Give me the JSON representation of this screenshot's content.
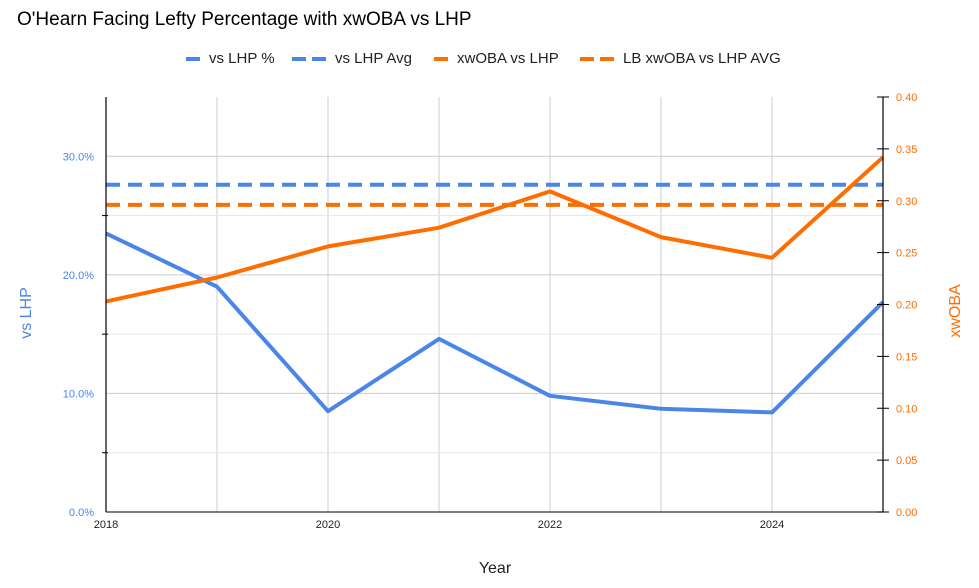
{
  "chart_data": {
    "type": "line",
    "title": "O'Hearn Facing Lefty Percentage with xwOBA vs LHP",
    "xlabel": "Year",
    "ylabel_left": "vs LHP",
    "ylabel_right": "xwOBA",
    "x": [
      2018,
      2019,
      2020,
      2021,
      2022,
      2023,
      2024,
      2025
    ],
    "x_ticks": [
      "2018",
      "2020",
      "2022",
      "2024"
    ],
    "x_range": [
      2018,
      2025
    ],
    "ylim_left": [
      0,
      0.35
    ],
    "ylim_right": [
      0,
      0.4
    ],
    "y_ticks_left": [
      "0.0%",
      "10.0%",
      "20.0%",
      "30.0%"
    ],
    "y_ticks_left_values": [
      0,
      0.1,
      0.2,
      0.3
    ],
    "y_minor_ticks_left_values": [
      0.05,
      0.15,
      0.25
    ],
    "y_ticks_right": [
      "0.00",
      "0.05",
      "0.10",
      "0.15",
      "0.20",
      "0.25",
      "0.30",
      "0.35",
      "0.40"
    ],
    "y_ticks_right_values": [
      0,
      0.05,
      0.1,
      0.15,
      0.2,
      0.25,
      0.3,
      0.35,
      0.4
    ],
    "grid": true,
    "legend_position": "top",
    "series": [
      {
        "name": "vs LHP %",
        "axis": "left",
        "style": "solid",
        "color": "#4a86e8",
        "values": [
          0.235,
          0.19,
          0.085,
          0.146,
          0.098,
          0.087,
          0.084,
          0.177
        ]
      },
      {
        "name": "vs LHP Avg",
        "axis": "left",
        "style": "dashed",
        "color": "#4a86e8",
        "values": [
          0.276,
          0.276,
          0.276,
          0.276,
          0.276,
          0.276,
          0.276,
          0.276
        ]
      },
      {
        "name": "xwOBA vs LHP",
        "axis": "right",
        "style": "solid",
        "color": "#ff6d01",
        "values": [
          0.203,
          0.226,
          0.256,
          0.274,
          0.309,
          0.265,
          0.245,
          0.342
        ]
      },
      {
        "name": "LB xwOBA vs LHP AVG",
        "axis": "right",
        "style": "dashed",
        "color": "#ff6d01",
        "values": [
          0.296,
          0.296,
          0.296,
          0.296,
          0.296,
          0.296,
          0.296,
          0.296
        ]
      }
    ]
  },
  "colors": {
    "left_axis_text": "#4a86e8",
    "right_axis_text": "#ff6d01",
    "gridline": "#cccccc",
    "axis_line": "#000000"
  }
}
